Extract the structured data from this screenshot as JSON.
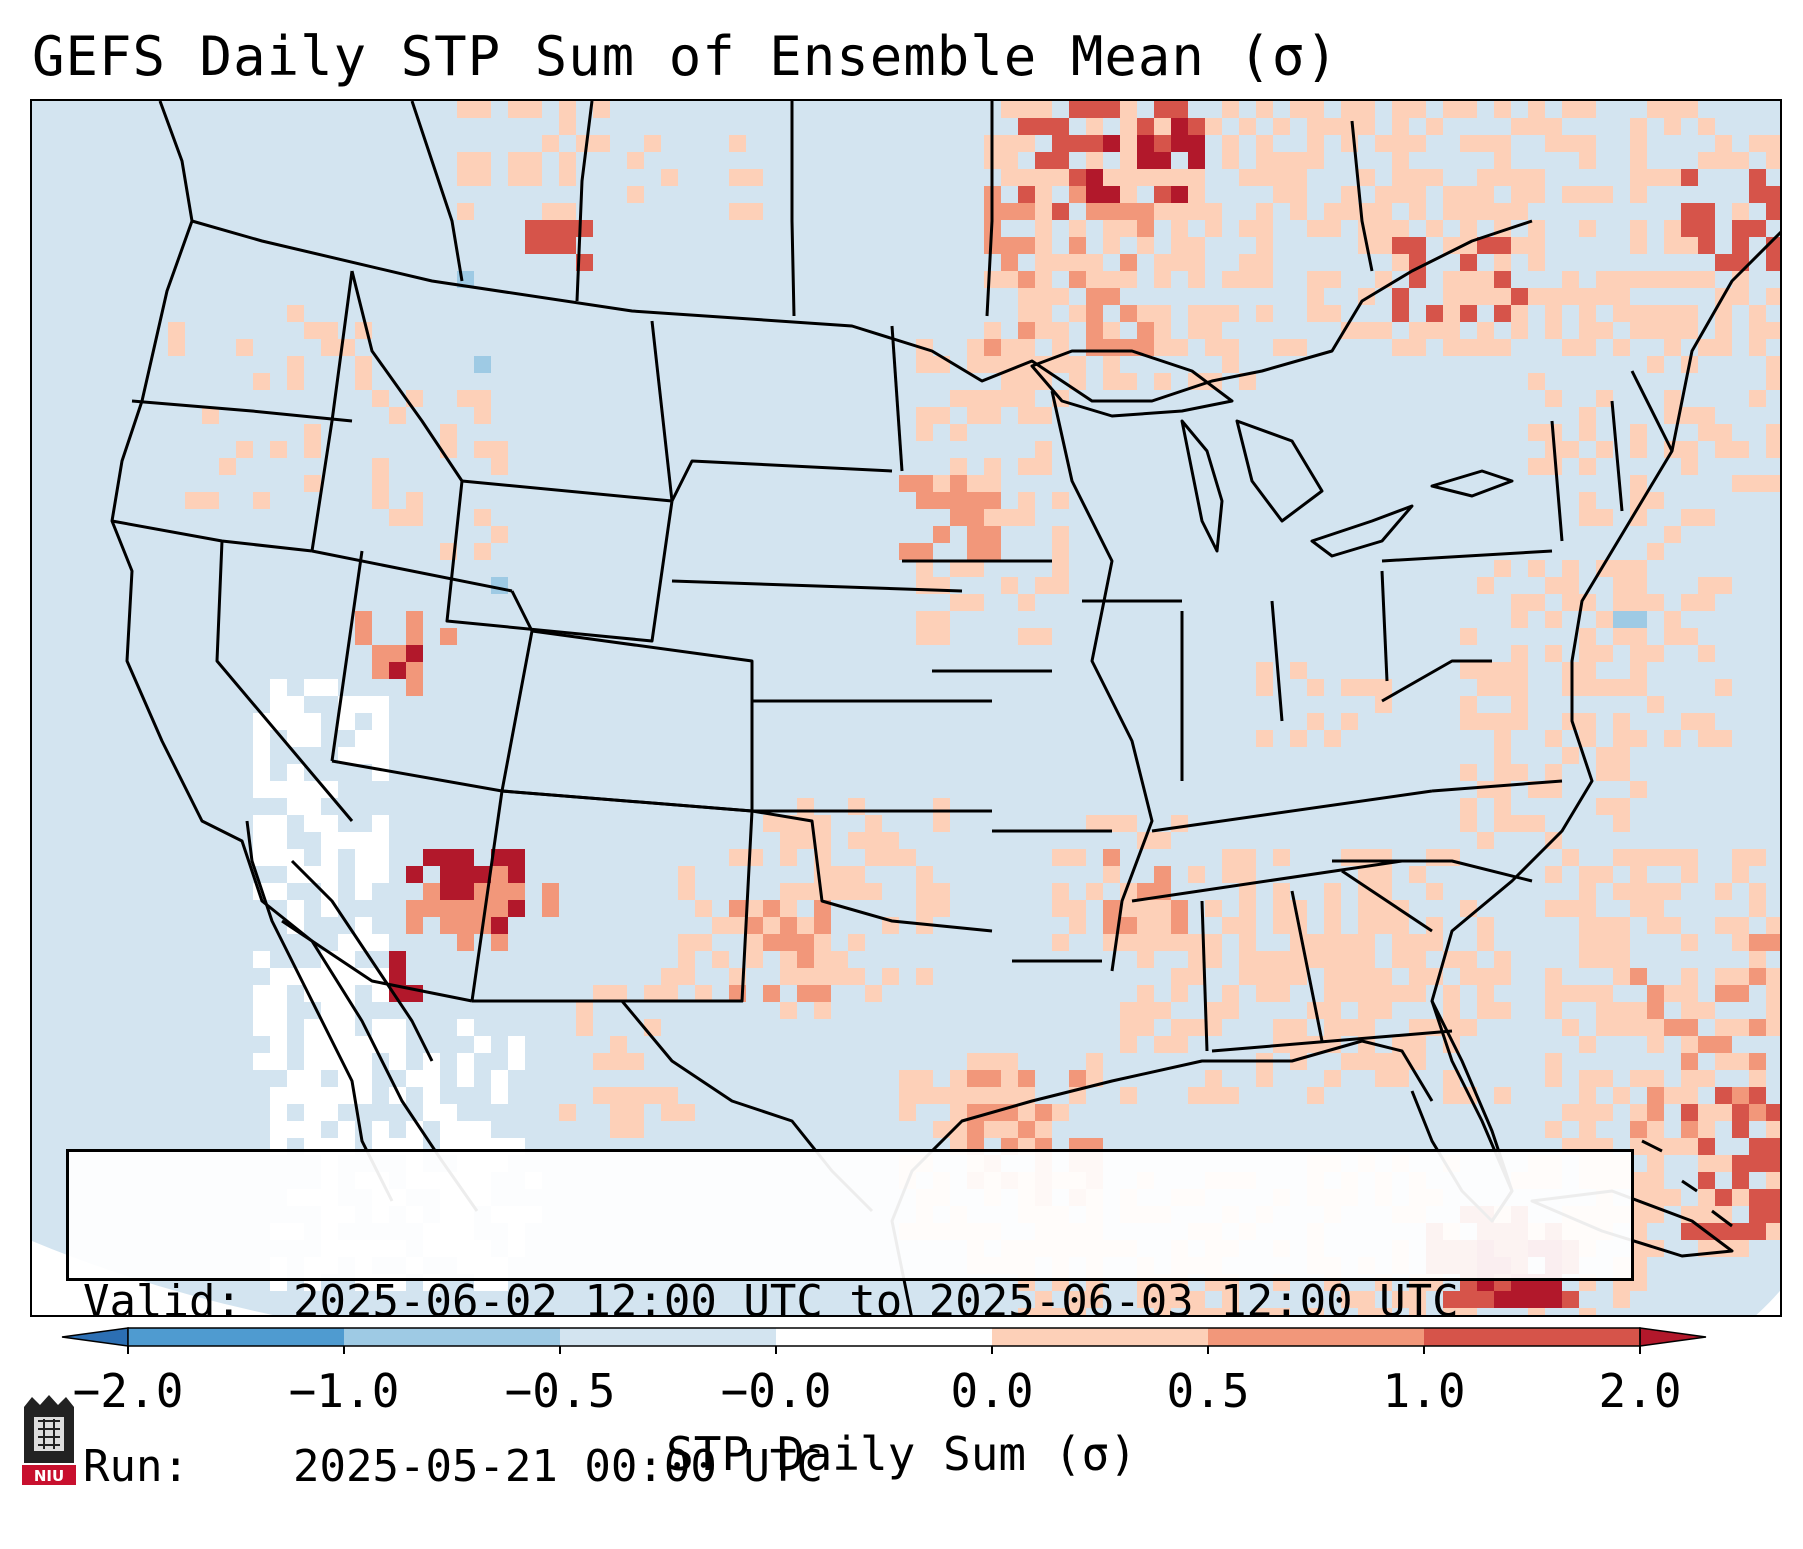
{
  "title": "GEFS Daily STP Sum of Ensemble Mean (σ)",
  "info": {
    "valid_label": "Valid:",
    "valid_text": "2025-06-02 12:00 UTC to 2025-06-03 12:00 UTC",
    "run_label": "Run:",
    "run_text": "2025-05-21 00:00 UTC"
  },
  "colorbar": {
    "title": "STP Daily Sum (σ)",
    "ticks": [
      "−2.0",
      "−1.0",
      "−0.5",
      "−0.0",
      "0.0",
      "0.5",
      "1.0",
      "2.0"
    ],
    "colors": [
      "#2c6fb3",
      "#4f9bd0",
      "#9ecae4",
      "#d3e4f0",
      "#ffffff",
      "#fdd0b8",
      "#f2977a",
      "#d6544a",
      "#b2182b"
    ]
  },
  "map": {
    "region": "Continental United States, southern Canada, northern Mexico, Gulf of Mexico, western Atlantic",
    "colors": {
      "background": "#d3e4f0",
      "white": "#ffffff",
      "light_orange": "#fdd0b8",
      "orange": "#f2977a",
      "red": "#d6544a",
      "dark_red": "#b2182b",
      "blue": "#9ecae4"
    }
  },
  "logo": {
    "text": "NIU",
    "icon": "niu-logo-icon"
  }
}
